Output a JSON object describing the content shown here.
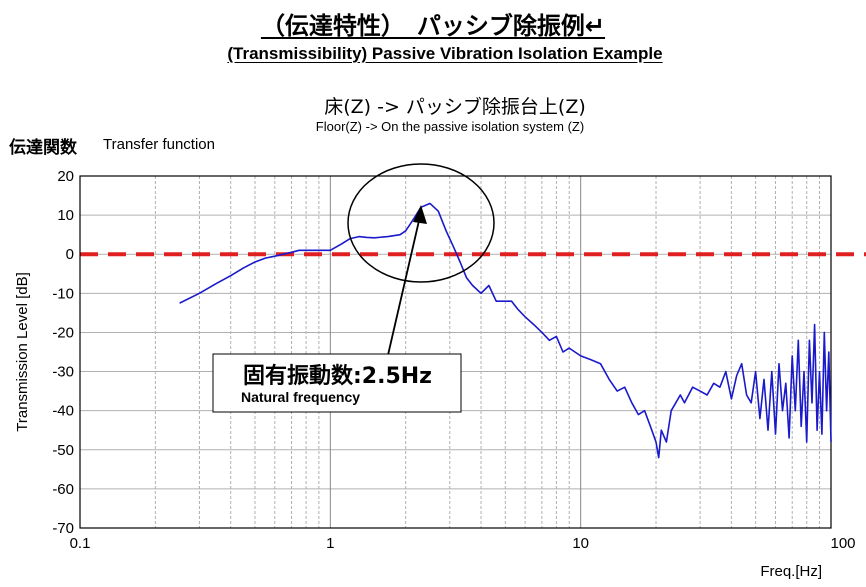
{
  "header": {
    "title_jp": "（伝達特性）　パッシブ除振例↵",
    "title_en": "(Transmissibility) Passive Vibration Isolation Example",
    "subtitle_jp": "床(Z) -> パッシブ除振台上(Z)",
    "subtitle_en": "Floor(Z) -> On the passive isolation system (Z)",
    "transfer_label_jp": "伝達関数",
    "transfer_label_en": "Transfer function"
  },
  "annotation": {
    "label_jp": "固有振動数:2.5Hz",
    "label_en": "Natural frequency"
  },
  "colors": {
    "series": "#1a1acc",
    "reference": "#e02020",
    "grid": "#b0b0b0"
  },
  "chart_data": {
    "type": "line",
    "xscale": "log",
    "xlim": [
      0.1,
      100
    ],
    "ylim": [
      -70,
      20
    ],
    "xlabel": "Freq.[Hz]",
    "ylabel": "Transmission Level [dB]",
    "x_ticks": [
      "0.1",
      "1",
      "10",
      "100"
    ],
    "y_ticks": [
      "20",
      "10",
      "0",
      "-10",
      "-20",
      "-30",
      "-40",
      "-50",
      "-60",
      "-70"
    ],
    "grid": true,
    "reference_line": {
      "y": 0,
      "style": "dashed"
    },
    "series": [
      {
        "x": [
          0.25,
          0.3,
          0.35,
          0.4,
          0.45,
          0.5,
          0.55,
          0.6,
          0.65,
          0.7,
          0.75,
          0.8,
          0.9,
          1.0,
          1.1,
          1.2,
          1.3,
          1.4,
          1.5,
          1.7,
          1.9,
          2.0,
          2.1,
          2.2,
          2.3,
          2.5,
          2.7,
          2.9,
          3.1,
          3.3,
          3.5,
          3.7,
          4.0,
          4.3,
          4.6,
          5.0,
          5.3,
          5.6,
          6.0,
          6.5,
          7.0,
          7.5,
          8.0,
          8.5,
          9.0,
          10.0,
          11.0,
          12.0,
          13.0,
          14.0,
          15.0,
          16.0,
          17.0,
          18.0,
          19.0,
          20.0,
          20.5,
          21.0,
          22.0,
          23.0,
          24.0,
          25.0,
          26.0,
          28.0,
          30.0,
          32.0,
          34.0,
          36.0,
          38.0,
          40.0,
          42.0,
          44.0,
          46.0,
          48.0,
          50.0,
          52.0,
          54.0,
          56.0,
          58.0,
          60.0,
          62.0,
          64.0,
          66.0,
          68.0,
          70.0,
          72.0,
          74.0,
          76.0,
          78.0,
          80.0,
          82.0,
          84.0,
          86.0,
          88.0,
          90.0,
          92.0,
          94.0,
          96.0,
          98.0,
          100.0
        ],
        "y": [
          -12.5,
          -10,
          -7.5,
          -5.5,
          -3.5,
          -2,
          -1,
          -0.5,
          0,
          0.5,
          1,
          1,
          1,
          1,
          2.5,
          4,
          4.5,
          4.3,
          4.2,
          4.5,
          5,
          6,
          8,
          10,
          12,
          13,
          11,
          6,
          2,
          -2,
          -6,
          -8,
          -10,
          -8,
          -12,
          -12,
          -12,
          -14,
          -16,
          -18,
          -20,
          -22,
          -21,
          -25,
          -24,
          -26,
          -27,
          -28,
          -32,
          -35,
          -34,
          -38,
          -41,
          -40,
          -44,
          -48,
          -52,
          -45,
          -48,
          -40,
          -38,
          -36,
          -38,
          -34,
          -35,
          -36,
          -33,
          -34,
          -30,
          -37,
          -31,
          -28,
          -36,
          -38,
          -30,
          -42,
          -32,
          -45,
          -30,
          -46,
          -28,
          -40,
          -33,
          -47,
          -26,
          -40,
          -22,
          -44,
          -30,
          -48,
          -22,
          -38,
          -18,
          -45,
          -30,
          -46,
          -20,
          -40,
          -25,
          -48
        ]
      }
    ]
  }
}
